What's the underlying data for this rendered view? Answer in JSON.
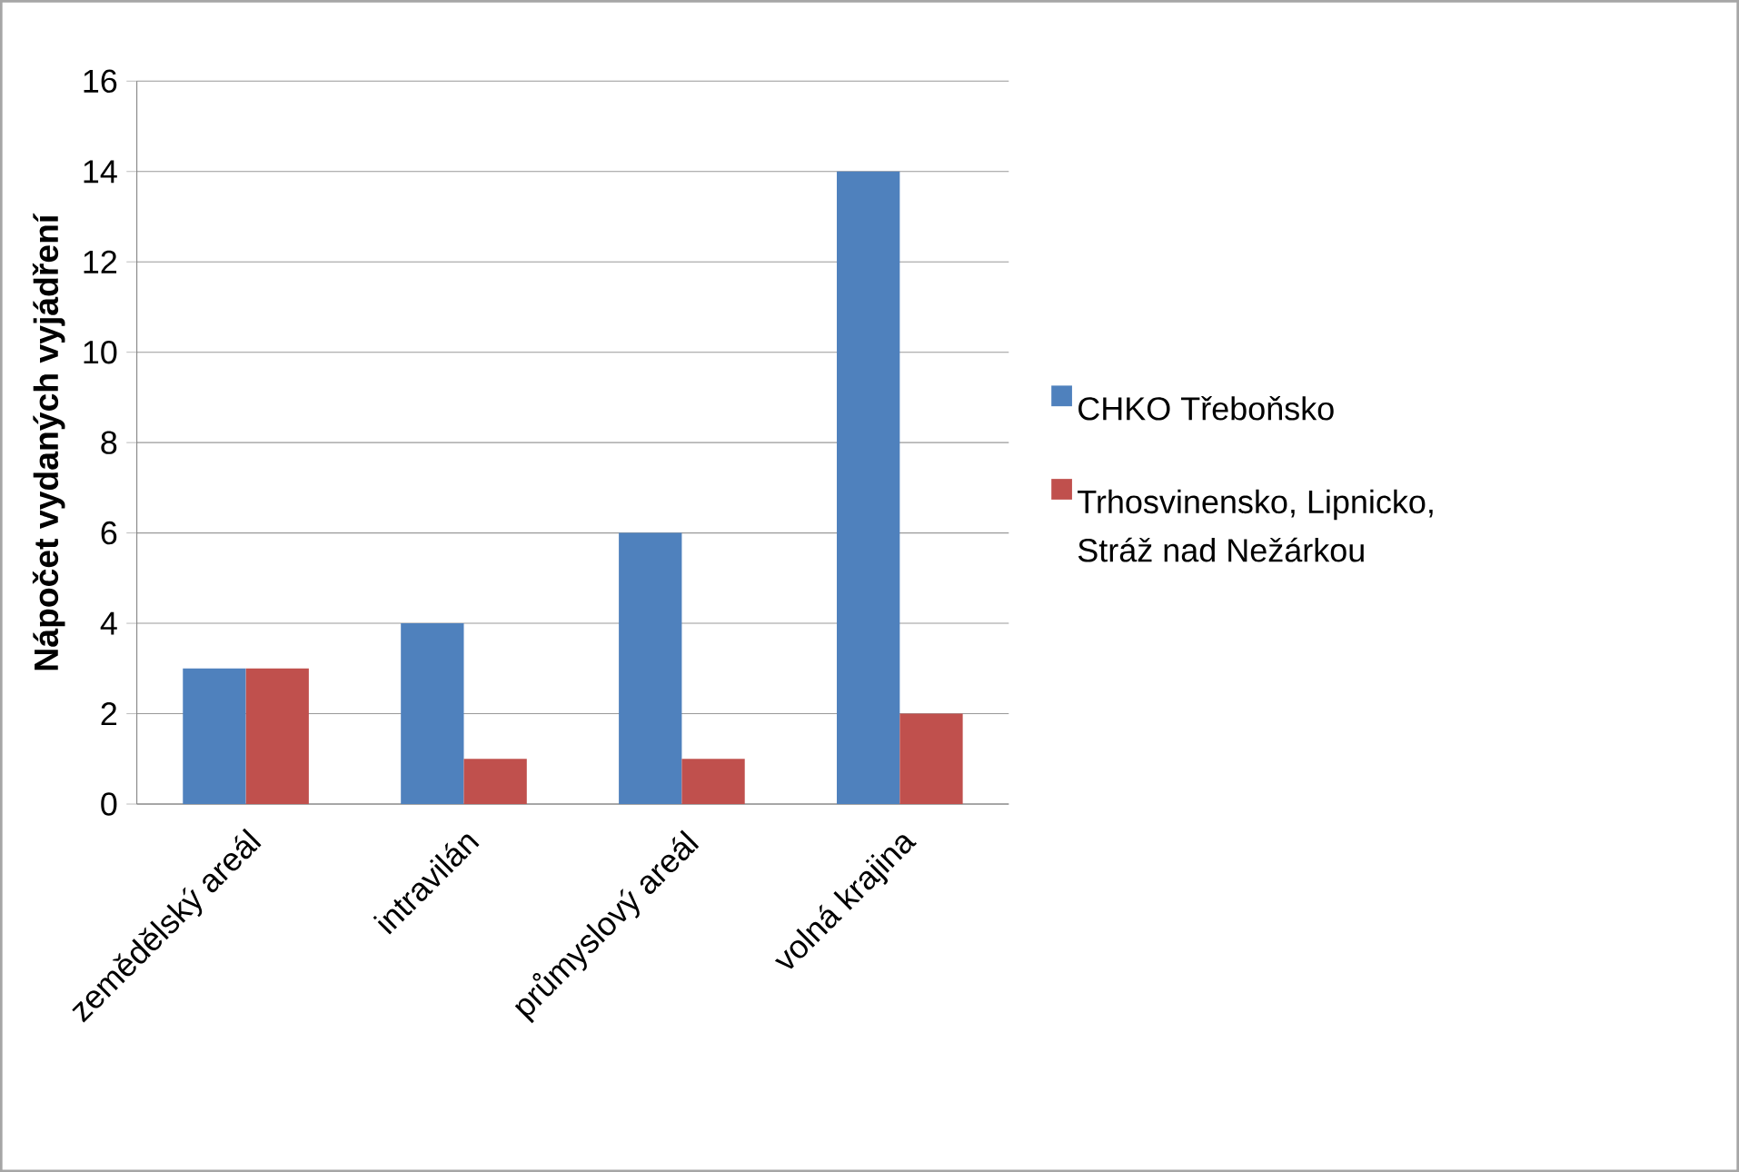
{
  "chart_data": {
    "type": "bar",
    "ylabel": "**Nápočet vydaných vyjádření**",
    "categories": [
      "zemědělský areál",
      "intravilán",
      "průmyslový areál",
      "volná krajina"
    ],
    "series": [
      {
        "name": "CHKO Třeboňsko",
        "color": "#4f81bd",
        "values": [
          3,
          4,
          6,
          14
        ]
      },
      {
        "name": "Trhosvinensko, Lipnicko, Stráž nad Nežárkou",
        "color": "#c0504d",
        "values": [
          3,
          1,
          1,
          2
        ]
      }
    ],
    "ylim": [
      0,
      16
    ],
    "yticks": [
      0,
      2,
      4,
      6,
      8,
      10,
      12,
      14,
      16
    ],
    "grid": "y",
    "legend": "right"
  }
}
